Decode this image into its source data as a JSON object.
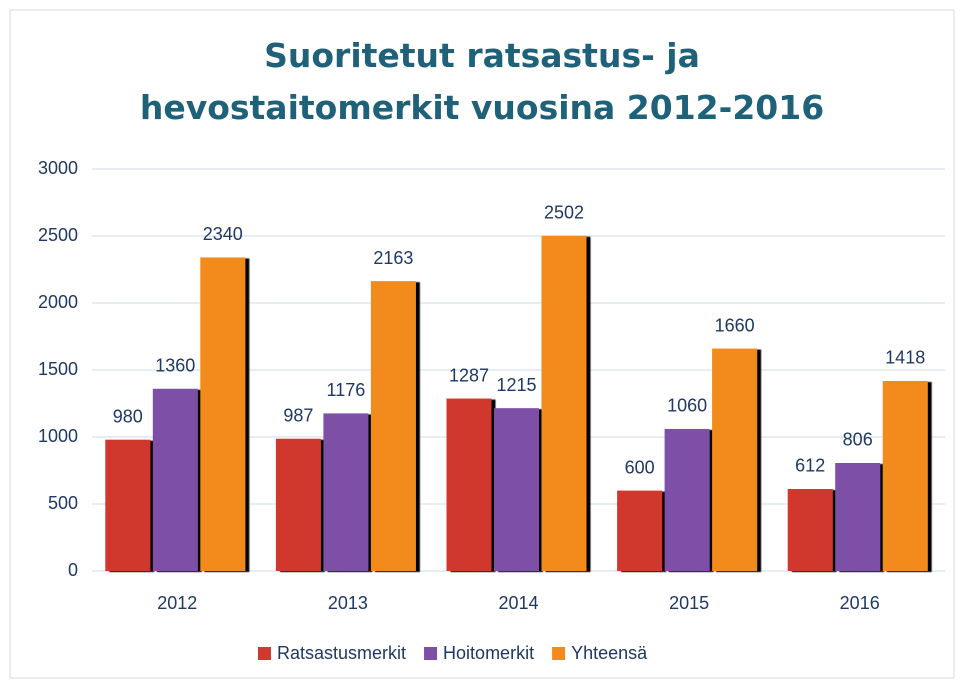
{
  "chart_data": {
    "type": "bar",
    "title": "Suoritetut ratsastus- ja hevostaitomerkit vuosina 2012-2016",
    "categories": [
      "2012",
      "2013",
      "2014",
      "2015",
      "2016"
    ],
    "series": [
      {
        "name": "Ratsastusmerkit",
        "color": "#d0392f",
        "values": [
          980,
          987,
          1287,
          600,
          612
        ]
      },
      {
        "name": "Hoitomerkit",
        "color": "#7d4fa6",
        "values": [
          1360,
          1176,
          1215,
          1060,
          806
        ]
      },
      {
        "name": "Yhteensä",
        "color": "#f28a1e",
        "values": [
          2340,
          2163,
          2502,
          1660,
          1418
        ]
      }
    ],
    "ylim": [
      0,
      3000
    ],
    "yticks": [
      0,
      500,
      1000,
      1500,
      2000,
      2500,
      3000
    ],
    "grid": true,
    "legend": "bottom"
  }
}
